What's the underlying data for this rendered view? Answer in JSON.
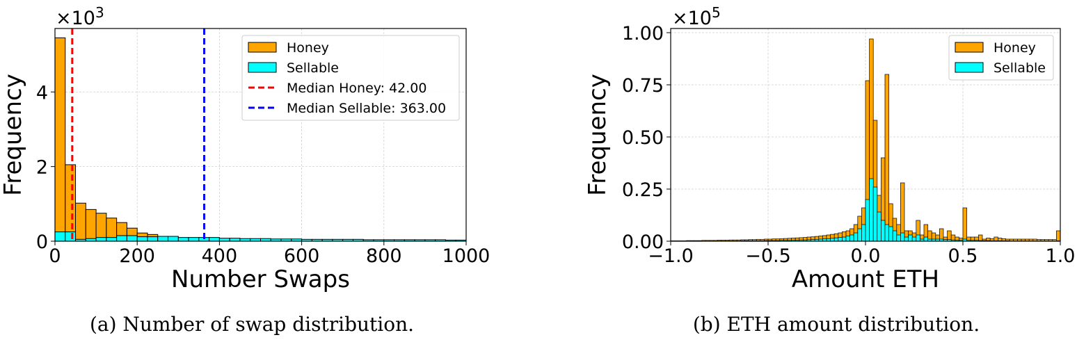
{
  "chart_data": [
    {
      "type": "bar",
      "title": "",
      "xlabel": "Number Swaps",
      "ylabel": "Frequency",
      "y_multiplier": "×10",
      "y_multiplier_exp": "3",
      "caption": "(a) Number of swap distribution.",
      "xlim": [
        0,
        1000
      ],
      "ylim": [
        0,
        5.7
      ],
      "xticks": [
        0,
        200,
        400,
        600,
        800,
        1000
      ],
      "xtick_labels": [
        "0",
        "200",
        "400",
        "600",
        "800",
        "1000"
      ],
      "yticks": [
        0,
        2,
        4
      ],
      "ytick_labels": [
        "0",
        "2",
        "4"
      ],
      "grid": true,
      "legend_position": "top-right",
      "bin_edges": [
        0,
        25,
        50,
        75,
        100,
        125,
        150,
        175,
        200,
        225,
        250,
        275,
        300,
        325,
        350,
        375,
        400,
        425,
        450,
        475,
        500,
        525,
        550,
        575,
        600,
        625,
        650,
        675,
        700,
        725,
        750,
        775,
        800,
        825,
        850,
        875,
        900,
        925,
        950,
        975,
        1000
      ],
      "series": [
        {
          "name": "Honey",
          "color": "#FFA500",
          "values": [
            5.45,
            2.05,
            1.02,
            0.85,
            0.75,
            0.62,
            0.5,
            0.35,
            0.22,
            0.18,
            0.12,
            0.1,
            0.09,
            0.08,
            0.06,
            0.05,
            0.04,
            0.04,
            0.03,
            0.03,
            0.03,
            0.02,
            0.02,
            0.02,
            0.02,
            0.02,
            0.01,
            0.01,
            0.01,
            0.01,
            0.01,
            0.01,
            0.01,
            0.01,
            0.01,
            0.01,
            0.01,
            0.01,
            0.01,
            0.01
          ]
        },
        {
          "name": "Sellable",
          "color": "#00FFFF",
          "values": [
            0.25,
            0.25,
            0.05,
            0.07,
            0.1,
            0.1,
            0.15,
            0.15,
            0.12,
            0.12,
            0.13,
            0.13,
            0.1,
            0.1,
            0.1,
            0.1,
            0.08,
            0.08,
            0.07,
            0.07,
            0.07,
            0.06,
            0.06,
            0.06,
            0.05,
            0.05,
            0.05,
            0.05,
            0.05,
            0.05,
            0.04,
            0.04,
            0.04,
            0.04,
            0.04,
            0.04,
            0.04,
            0.04,
            0.03,
            0.03
          ]
        }
      ],
      "vlines": [
        {
          "name": "Median Honey: 42.00",
          "x": 42,
          "color": "#FF0000"
        },
        {
          "name": "Median Sellable: 363.00",
          "x": 363,
          "color": "#0000FF"
        }
      ]
    },
    {
      "type": "bar",
      "title": "",
      "xlabel": "Amount ETH",
      "ylabel": "Frequency",
      "y_multiplier": "×10",
      "y_multiplier_exp": "5",
      "caption": "(b) ETH amount distribution.",
      "xlim": [
        -1.0,
        1.0
      ],
      "ylim": [
        0,
        1.02
      ],
      "xticks": [
        -1.0,
        -0.5,
        0.0,
        0.5,
        1.0
      ],
      "xtick_labels": [
        "−1.0",
        "−0.5",
        "0.0",
        "0.5",
        "1.0"
      ],
      "yticks": [
        0,
        0.25,
        0.5,
        0.75,
        1.0
      ],
      "ytick_labels": [
        "0.00",
        "0.25",
        "0.50",
        "0.75",
        "1.00"
      ],
      "grid": true,
      "legend_position": "top-right",
      "bin_start": -1.0,
      "bin_width": 0.02,
      "series": [
        {
          "name": "Honey",
          "color": "#FFA500",
          "values": [
            0.002,
            0.002,
            0.002,
            0.002,
            0.003,
            0.003,
            0.003,
            0.003,
            0.004,
            0.004,
            0.004,
            0.004,
            0.005,
            0.005,
            0.005,
            0.006,
            0.006,
            0.006,
            0.007,
            0.007,
            0.008,
            0.008,
            0.009,
            0.009,
            0.01,
            0.01,
            0.011,
            0.011,
            0.012,
            0.013,
            0.014,
            0.015,
            0.016,
            0.017,
            0.018,
            0.02,
            0.021,
            0.023,
            0.025,
            0.027,
            0.03,
            0.033,
            0.036,
            0.04,
            0.045,
            0.05,
            0.06,
            0.08,
            0.12,
            0.16,
            0.77,
            0.97,
            0.58,
            0.22,
            0.4,
            0.8,
            0.18,
            0.11,
            0.08,
            0.28,
            0.05,
            0.05,
            0.04,
            0.1,
            0.03,
            0.08,
            0.05,
            0.04,
            0.03,
            0.06,
            0.02,
            0.05,
            0.03,
            0.02,
            0.015,
            0.16,
            0.02,
            0.02,
            0.02,
            0.03,
            0.01,
            0.015,
            0.012,
            0.02,
            0.015,
            0.012,
            0.01,
            0.01,
            0.01,
            0.01,
            0.01,
            0.01,
            0.01,
            0.01,
            0.008,
            0.008,
            0.008,
            0.008,
            0.008,
            0.05
          ]
        },
        {
          "name": "Sellable",
          "color": "#00FFFF",
          "values": [
            0.0,
            0.0,
            0.0,
            0.0,
            0.0,
            0.0,
            0.0,
            0.001,
            0.001,
            0.001,
            0.001,
            0.001,
            0.001,
            0.001,
            0.001,
            0.001,
            0.001,
            0.001,
            0.002,
            0.002,
            0.002,
            0.002,
            0.002,
            0.002,
            0.003,
            0.003,
            0.003,
            0.003,
            0.004,
            0.004,
            0.004,
            0.005,
            0.005,
            0.006,
            0.006,
            0.007,
            0.008,
            0.009,
            0.01,
            0.011,
            0.012,
            0.014,
            0.016,
            0.018,
            0.02,
            0.025,
            0.03,
            0.04,
            0.06,
            0.08,
            0.2,
            0.3,
            0.26,
            0.14,
            0.1,
            0.08,
            0.07,
            0.05,
            0.03,
            0.04,
            0.02,
            0.03,
            0.02,
            0.03,
            0.01,
            0.02,
            0.01,
            0.01,
            0.01,
            0.01,
            0.008,
            0.008,
            0.006,
            0.005,
            0.005,
            0.01,
            0.004,
            0.004,
            0.004,
            0.003,
            0.003,
            0.003,
            0.002,
            0.002,
            0.002,
            0.002,
            0.002,
            0.001,
            0.001,
            0.001,
            0.001,
            0.001,
            0.001,
            0.001,
            0.001,
            0.001,
            0.001,
            0.001,
            0.001,
            0.002
          ]
        }
      ]
    }
  ]
}
